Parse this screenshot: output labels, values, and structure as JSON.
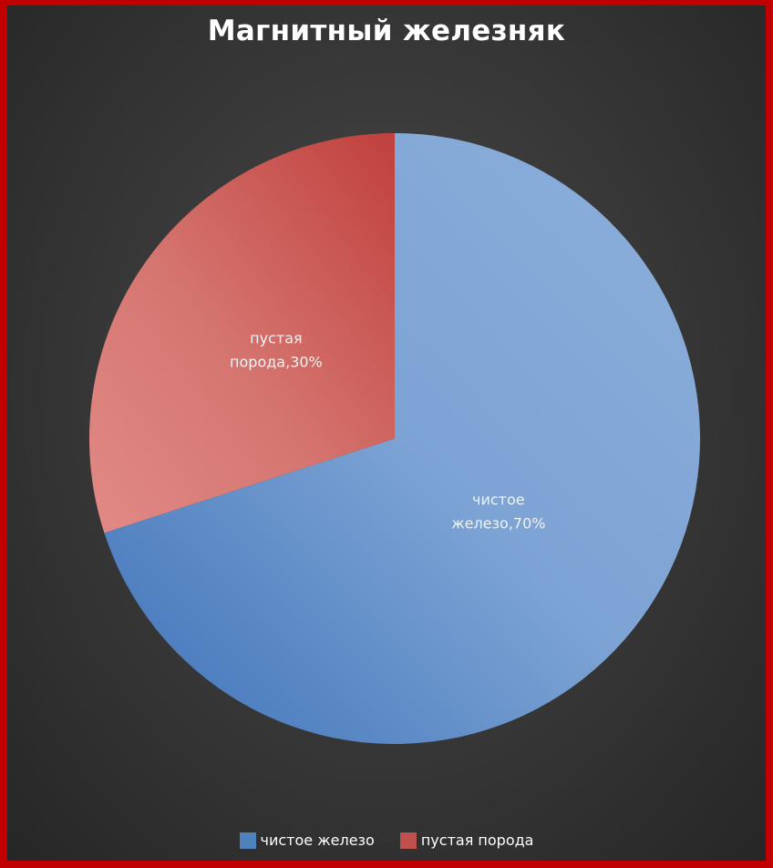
{
  "chart_data": {
    "type": "pie",
    "title": "Магнитный железняк",
    "slices": [
      {
        "name": "чистое железо",
        "value": 70,
        "label": "чистое железо,70%",
        "label_lines": [
          "чистое",
          "железо,70%"
        ],
        "color": "#4f81bd"
      },
      {
        "name": "пустая порода",
        "value": 30,
        "label": "пустая порода,30%",
        "label_lines": [
          "пустая",
          "порода,30%"
        ],
        "color": "#c0504d"
      }
    ],
    "legend": {
      "position": "bottom",
      "entries": [
        "чистое железо",
        "пустая порода"
      ]
    }
  }
}
